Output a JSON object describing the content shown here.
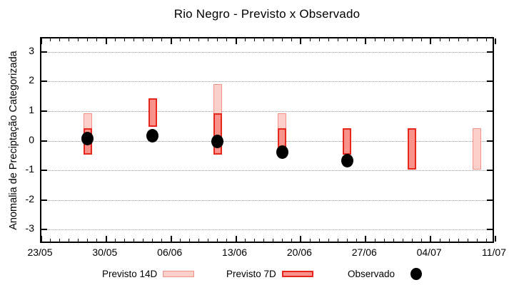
{
  "chart_data": {
    "type": "bar",
    "title": "Rio Negro - Previsto x Observado",
    "ylabel": "Anomalia de Preciptação Categorizada",
    "xlabel": "",
    "ylim": [
      -3.48,
      3.48
    ],
    "yticks": [
      3,
      2,
      1,
      0,
      -1,
      -2,
      -3
    ],
    "grid": "horizontal dotted lines at integer y values",
    "x_axis": {
      "start_date": "23/05",
      "end_date": "11/07",
      "span_days": 49,
      "tick_labels": [
        "23/05",
        "30/05",
        "06/06",
        "13/06",
        "20/06",
        "27/06",
        "04/07",
        "11/07"
      ],
      "major_tick_every_days": 7,
      "minor_tick_every_days": 1
    },
    "legend_position": "below plot",
    "legend": [
      {
        "label": "Previsto 14D",
        "swatch": "light-pink-range-box"
      },
      {
        "label": "Previsto 7D",
        "swatch": "red-range-box"
      },
      {
        "label": "Observado",
        "swatch": "black-dot"
      }
    ],
    "clusters": [
      {
        "date": "28/05",
        "day_offset": 5,
        "previsto_14d": [
          0.95,
          -0.45
        ],
        "previsto_7d": [
          0.45,
          -0.45
        ],
        "observado": 0.1
      },
      {
        "date": "04/06",
        "day_offset": 12,
        "previsto_14d": null,
        "previsto_7d": [
          1.45,
          0.5
        ],
        "observado": 0.2
      },
      {
        "date": "11/06",
        "day_offset": 19,
        "previsto_14d": [
          1.95,
          -0.45
        ],
        "previsto_7d": [
          0.95,
          -0.45
        ],
        "observado": 0.0
      },
      {
        "date": "18/06",
        "day_offset": 26,
        "previsto_14d": [
          0.95,
          -0.2
        ],
        "previsto_7d": [
          0.45,
          -0.2
        ],
        "observado": -0.35
      },
      {
        "date": "25/06",
        "day_offset": 33,
        "previsto_14d": null,
        "previsto_7d": [
          0.45,
          -0.45
        ],
        "observado": -0.65
      },
      {
        "date": "02/07",
        "day_offset": 40,
        "previsto_14d": null,
        "previsto_7d": [
          0.45,
          -0.95
        ],
        "observado": null
      },
      {
        "date": "09/07",
        "day_offset": 47,
        "previsto_14d": [
          0.45,
          -0.95
        ],
        "previsto_7d": null,
        "observado": null
      }
    ],
    "colors": {
      "previsto_14d_fill": "#FBCFCA",
      "previsto_14d_border": "#F0948A",
      "previsto_7d_fill": "#F9928B",
      "previsto_7d_border": "#E8271C",
      "observado": "#000000",
      "grid": "#999999",
      "axis": "#000000"
    }
  }
}
